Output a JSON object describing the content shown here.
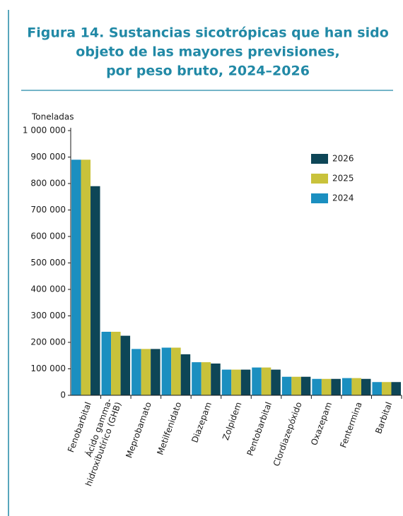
{
  "chart_data": {
    "type": "bar",
    "title_lines": [
      "Figura 14.    Sustancias sicotrópicas que han sido",
      "objeto de las mayores previsiones,",
      "por peso bruto, 2024–2026"
    ],
    "ylabel": "Toneladas",
    "categories": [
      "Fenobarbital",
      "Ácido gamma-hidroxibutírico (GHB)",
      "Meprobamato",
      "Metilfenidato",
      "Diazepam",
      "Zolpidem",
      "Pentobarbital",
      "Clordiazepóxido",
      "Oxazepam",
      "Fentermina",
      "Barbital"
    ],
    "series": [
      {
        "name": "2024",
        "color": "#1b8fc0",
        "values": [
          890000,
          240000,
          175000,
          180000,
          125000,
          97000,
          105000,
          70000,
          62000,
          65000,
          50000
        ]
      },
      {
        "name": "2025",
        "color": "#c9c23b",
        "values": [
          890000,
          240000,
          175000,
          180000,
          125000,
          97000,
          105000,
          70000,
          62000,
          65000,
          50000
        ]
      },
      {
        "name": "2026",
        "color": "#0e4657",
        "values": [
          790000,
          225000,
          175000,
          155000,
          120000,
          97000,
          97000,
          70000,
          62000,
          62000,
          50000
        ]
      }
    ],
    "ylim": [
      0,
      1000000
    ],
    "yticks": [
      0,
      {
        "value": 100000,
        "label": "100 000"
      },
      {
        "value": 200000,
        "label": "200 000"
      },
      {
        "value": 300000,
        "label": "300 000"
      },
      {
        "value": 400000,
        "label": "400 000"
      },
      {
        "value": 500000,
        "label": "500 000"
      },
      {
        "value": 600000,
        "label": "600 000"
      },
      {
        "value": 700000,
        "label": "700 000"
      },
      {
        "value": 800000,
        "label": "800 000"
      },
      {
        "value": 900000,
        "label": "900 000"
      },
      {
        "value": 1000000,
        "label": "1 000 000"
      }
    ],
    "grid": false,
    "legend": "upper right"
  }
}
